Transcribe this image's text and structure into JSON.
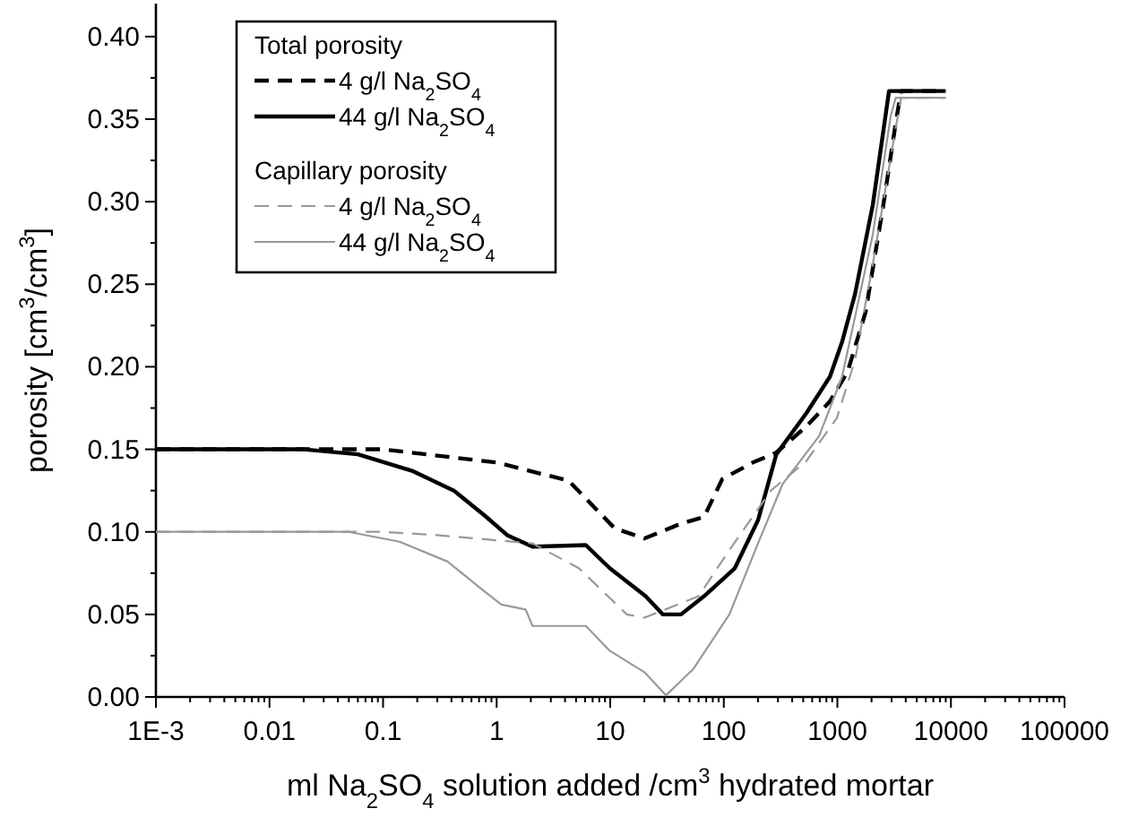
{
  "chart_data": {
    "type": "line",
    "xlabel": "ml Na$_{2}$SO$_{4}$ solution added /cm$^{3}$ hydrated mortar",
    "ylabel": "porosity [cm$^{3}$/cm$^{3}$]",
    "log": "x",
    "xlim": [
      0.001,
      100000
    ],
    "ylim": [
      0,
      0.42
    ],
    "xticks": [
      {
        "value": 0.001,
        "label": "1E-3"
      },
      {
        "value": 0.002,
        "label": null
      },
      {
        "value": 0.003,
        "label": null
      },
      {
        "value": 0.004,
        "label": null
      },
      {
        "value": 0.005,
        "label": null
      },
      {
        "value": 0.006,
        "label": null
      },
      {
        "value": 0.007,
        "label": null
      },
      {
        "value": 0.008,
        "label": null
      },
      {
        "value": 0.009,
        "label": null
      },
      0.01,
      {
        "value": 0.02,
        "label": null
      },
      {
        "value": 0.03,
        "label": null
      },
      {
        "value": 0.04,
        "label": null
      },
      {
        "value": 0.05,
        "label": null
      },
      {
        "value": 0.06,
        "label": null
      },
      {
        "value": 0.07,
        "label": null
      },
      {
        "value": 0.08,
        "label": null
      },
      {
        "value": 0.09,
        "label": null
      },
      0.1,
      {
        "value": 0.2,
        "label": null
      },
      {
        "value": 0.3,
        "label": null
      },
      {
        "value": 0.4,
        "label": null
      },
      {
        "value": 0.5,
        "label": null
      },
      {
        "value": 0.6,
        "label": null
      },
      {
        "value": 0.7,
        "label": null
      },
      {
        "value": 0.8,
        "label": null
      },
      {
        "value": 0.9,
        "label": null
      },
      1,
      {
        "value": 2,
        "label": null
      },
      {
        "value": 3,
        "label": null
      },
      {
        "value": 4,
        "label": null
      },
      {
        "value": 5,
        "label": null
      },
      {
        "value": 6,
        "label": null
      },
      {
        "value": 7,
        "label": null
      },
      {
        "value": 8,
        "label": null
      },
      {
        "value": 9,
        "label": null
      },
      10,
      {
        "value": 20,
        "label": null
      },
      {
        "value": 30,
        "label": null
      },
      {
        "value": 40,
        "label": null
      },
      {
        "value": 50,
        "label": null
      },
      {
        "value": 60,
        "label": null
      },
      {
        "value": 70,
        "label": null
      },
      {
        "value": 80,
        "label": null
      },
      {
        "value": 90,
        "label": null
      },
      100,
      {
        "value": 200,
        "label": null
      },
      {
        "value": 300,
        "label": null
      },
      {
        "value": 400,
        "label": null
      },
      {
        "value": 500,
        "label": null
      },
      {
        "value": 600,
        "label": null
      },
      {
        "value": 700,
        "label": null
      },
      {
        "value": 800,
        "label": null
      },
      {
        "value": 900,
        "label": null
      },
      1000,
      {
        "value": 2000,
        "label": null
      },
      {
        "value": 3000,
        "label": null
      },
      {
        "value": 4000,
        "label": null
      },
      {
        "value": 5000,
        "label": null
      },
      {
        "value": 6000,
        "label": null
      },
      {
        "value": 7000,
        "label": null
      },
      {
        "value": 8000,
        "label": null
      },
      {
        "value": 9000,
        "label": null
      },
      10000,
      {
        "value": 20000,
        "label": null
      },
      {
        "value": 30000,
        "label": null
      },
      {
        "value": 40000,
        "label": null
      },
      {
        "value": 50000,
        "label": null
      },
      {
        "value": 60000,
        "label": null
      },
      {
        "value": 70000,
        "label": null
      },
      {
        "value": 80000,
        "label": null
      },
      {
        "value": 90000,
        "label": null
      },
      100000
    ],
    "yticks": [
      {
        "value": 0,
        "label": "0.00"
      },
      {
        "value": 0.025,
        "label": null
      },
      {
        "value": 0.05,
        "label": "0.05"
      },
      {
        "value": 0.075,
        "label": null
      },
      {
        "value": 0.1,
        "label": "0.10"
      },
      {
        "value": 0.125,
        "label": null
      },
      {
        "value": 0.15,
        "label": "0.15"
      },
      {
        "value": 0.175,
        "label": null
      },
      {
        "value": 0.2,
        "label": "0.20"
      },
      {
        "value": 0.225,
        "label": null
      },
      {
        "value": 0.25,
        "label": "0.25"
      },
      {
        "value": 0.275,
        "label": null
      },
      {
        "value": 0.3,
        "label": "0.30"
      },
      {
        "value": 0.325,
        "label": null
      },
      {
        "value": 0.35,
        "label": "0.35"
      },
      {
        "value": 0.375,
        "label": null
      },
      {
        "value": 0.4,
        "label": "0.40"
      }
    ],
    "grid": false,
    "legend": "top left",
    "annotations": [
      "Total porosity",
      "Capillary porosity"
    ],
    "series": [
      {
        "name": "4 g/l Na$_{2}$SO$_{4}$",
        "color": "#000000",
        "line_style": "dashed",
        "x": [
          0.001,
          0.1,
          1,
          4.3,
          11,
          15,
          20,
          42,
          67,
          97,
          180,
          290,
          535,
          860,
          1230,
          1770,
          2540,
          3270,
          3640,
          9000
        ],
        "values": [
          0.15,
          0.15,
          0.142,
          0.131,
          0.102,
          0.099,
          0.096,
          0.105,
          0.109,
          0.132,
          0.142,
          0.148,
          0.164,
          0.179,
          0.197,
          0.233,
          0.298,
          0.348,
          0.367,
          0.367
        ]
      },
      {
        "name": "44 g/l Na$_{2}$SO$_{4}$",
        "color": "#000000",
        "line_style": "solid",
        "x": [
          0.001,
          0.02,
          0.06,
          0.18,
          0.42,
          0.78,
          1.24,
          2.07,
          6.1,
          9.9,
          20.5,
          29,
          42,
          67,
          125,
          200,
          290,
          535,
          860,
          1100,
          1430,
          2050,
          2850,
          8900
        ],
        "values": [
          0.15,
          0.15,
          0.147,
          0.137,
          0.125,
          0.11,
          0.098,
          0.091,
          0.092,
          0.078,
          0.061,
          0.05,
          0.05,
          0.061,
          0.078,
          0.107,
          0.147,
          0.172,
          0.194,
          0.215,
          0.244,
          0.298,
          0.367,
          0.367
        ]
      },
      {
        "name": "4 g/l Na$_{2}$SO$_{4}$",
        "color": "#999999",
        "line_style": "dashed",
        "x": [
          0.001,
          0.1,
          0.3,
          2.07,
          5.3,
          14,
          20,
          60,
          112,
          260,
          535,
          990,
          1430,
          2050,
          3270,
          3640,
          9000
        ],
        "values": [
          0.1,
          0.1,
          0.098,
          0.093,
          0.078,
          0.05,
          0.048,
          0.061,
          0.089,
          0.125,
          0.143,
          0.169,
          0.204,
          0.262,
          0.345,
          0.363,
          0.363
        ]
      },
      {
        "name": "44 g/l Na$_{2}$SO$_{4}$",
        "color": "#999999",
        "line_style": "solid",
        "x": [
          0.001,
          0.05,
          0.14,
          0.37,
          0.78,
          1.1,
          1.8,
          2.07,
          6.1,
          9.9,
          20,
          31,
          54,
          112,
          200,
          330,
          690,
          1100,
          2050,
          2950,
          3270,
          9000
        ],
        "values": [
          0.1,
          0.1,
          0.094,
          0.082,
          0.064,
          0.056,
          0.053,
          0.043,
          0.043,
          0.028,
          0.015,
          0.001,
          0.017,
          0.05,
          0.093,
          0.129,
          0.158,
          0.194,
          0.28,
          0.352,
          0.363,
          0.363
        ]
      }
    ]
  }
}
